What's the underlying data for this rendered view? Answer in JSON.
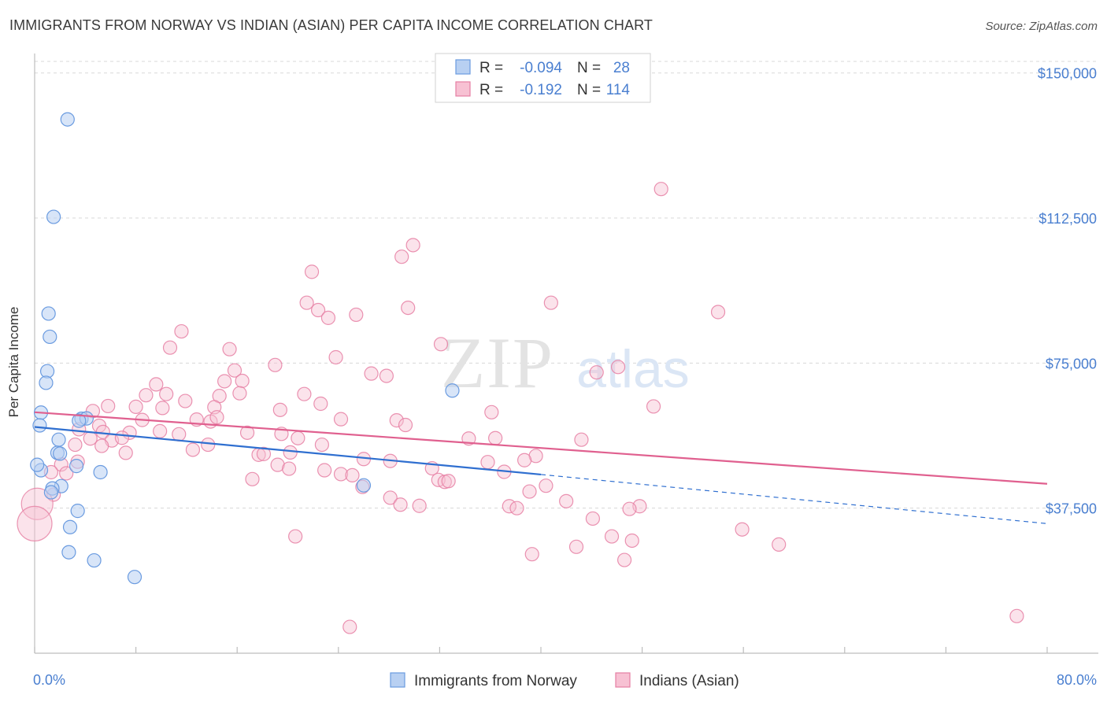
{
  "header": {
    "title": "IMMIGRANTS FROM NORWAY VS INDIAN (ASIAN) PER CAPITA INCOME CORRELATION CHART",
    "source": "Source: ZipAtlas.com"
  },
  "colors": {
    "blue": "#6a9be0",
    "blue_fill": "#b8d0f2",
    "blue_line": "#2f6fd0",
    "pink": "#e67fa3",
    "pink_fill": "#f7c1d3",
    "pink_line": "#e0608f",
    "tick_text": "#4a7fd0",
    "grid": "#d8d8d8"
  },
  "watermark": {
    "zip": "ZIP",
    "atlas": "atlas"
  },
  "chart_data": {
    "type": "scatter",
    "title": "IMMIGRANTS FROM NORWAY VS INDIAN (ASIAN) PER CAPITA INCOME CORRELATION CHART",
    "xlabel": "",
    "ylabel": "Per Capita Income",
    "xlim": [
      0,
      80
    ],
    "ylim": [
      0,
      153000
    ],
    "x_tick_labels": [
      "0.0%",
      "80.0%"
    ],
    "y_ticks": [
      37500,
      75000,
      112500,
      150000
    ],
    "y_tick_labels": [
      "$37,500",
      "$75,000",
      "$112,500",
      "$150,000"
    ],
    "legend": {
      "position": "top-center",
      "rows": [
        {
          "r_label": "R =",
          "r_value": "-0.094",
          "n_label": "N =",
          "n_value": "28"
        },
        {
          "r_label": "R =",
          "r_value": "-0.192",
          "n_label": "N =",
          "n_value": "114"
        }
      ]
    },
    "bottom_legend": [
      "Immigrants from Norway",
      "Indians (Asian)"
    ],
    "series": [
      {
        "name": "Immigrants from Norway",
        "R": -0.094,
        "N": 28,
        "trend": {
          "x0": 0,
          "y0": 58500,
          "x1": 40,
          "y1": 46200,
          "dash_to_x": 80,
          "dash_to_y": 33500
        },
        "points": [
          [
            2.6,
            138000
          ],
          [
            1.5,
            112800
          ],
          [
            1.1,
            87800
          ],
          [
            1.2,
            81800
          ],
          [
            1.0,
            72900
          ],
          [
            0.9,
            69900
          ],
          [
            0.5,
            62200
          ],
          [
            0.4,
            58900
          ],
          [
            3.7,
            60600
          ],
          [
            4.1,
            60700
          ],
          [
            3.5,
            60100
          ],
          [
            1.9,
            55200
          ],
          [
            1.8,
            51800
          ],
          [
            2.0,
            51600
          ],
          [
            3.3,
            48400
          ],
          [
            0.5,
            47300
          ],
          [
            5.2,
            46800
          ],
          [
            2.1,
            43200
          ],
          [
            1.4,
            42600
          ],
          [
            3.4,
            36800
          ],
          [
            2.8,
            32600
          ],
          [
            2.7,
            26100
          ],
          [
            4.7,
            24000
          ],
          [
            7.9,
            19700
          ],
          [
            33.0,
            67900
          ],
          [
            26.0,
            43400
          ],
          [
            0.2,
            48700
          ],
          [
            1.3,
            41600
          ]
        ]
      },
      {
        "name": "Indians (Asian)",
        "R": -0.192,
        "N": 114,
        "trend": {
          "x0": 0,
          "y0": 62300,
          "x1": 80,
          "y1": 43800
        },
        "points": [
          [
            49.5,
            120000
          ],
          [
            29.9,
            105500
          ],
          [
            29.0,
            102500
          ],
          [
            21.9,
            98600
          ],
          [
            21.5,
            90600
          ],
          [
            22.4,
            88700
          ],
          [
            23.2,
            86700
          ],
          [
            25.4,
            87500
          ],
          [
            29.5,
            89300
          ],
          [
            40.8,
            90600
          ],
          [
            54.0,
            88200
          ],
          [
            11.6,
            83200
          ],
          [
            32.1,
            79900
          ],
          [
            10.7,
            79000
          ],
          [
            15.4,
            78600
          ],
          [
            23.8,
            76500
          ],
          [
            19.0,
            74500
          ],
          [
            26.6,
            72300
          ],
          [
            27.8,
            71700
          ],
          [
            15.8,
            73100
          ],
          [
            44.4,
            72600
          ],
          [
            46.1,
            74000
          ],
          [
            15.0,
            70300
          ],
          [
            16.4,
            70400
          ],
          [
            9.6,
            69500
          ],
          [
            8.8,
            66700
          ],
          [
            10.4,
            67000
          ],
          [
            14.6,
            66500
          ],
          [
            16.2,
            67200
          ],
          [
            21.3,
            67000
          ],
          [
            11.9,
            65200
          ],
          [
            22.6,
            64500
          ],
          [
            8.0,
            63700
          ],
          [
            5.8,
            63900
          ],
          [
            10.1,
            63400
          ],
          [
            14.2,
            63600
          ],
          [
            19.4,
            62900
          ],
          [
            36.1,
            62300
          ],
          [
            48.9,
            63800
          ],
          [
            4.6,
            62600
          ],
          [
            12.8,
            60400
          ],
          [
            13.9,
            59900
          ],
          [
            14.4,
            61000
          ],
          [
            24.2,
            60500
          ],
          [
            28.6,
            60200
          ],
          [
            8.5,
            60300
          ],
          [
            5.1,
            58800
          ],
          [
            3.5,
            57900
          ],
          [
            5.4,
            57200
          ],
          [
            7.5,
            57000
          ],
          [
            9.9,
            57400
          ],
          [
            11.4,
            56600
          ],
          [
            16.8,
            57000
          ],
          [
            19.5,
            56700
          ],
          [
            20.8,
            55600
          ],
          [
            29.3,
            59000
          ],
          [
            34.3,
            55500
          ],
          [
            36.4,
            55600
          ],
          [
            43.2,
            55200
          ],
          [
            4.4,
            55500
          ],
          [
            6.1,
            55000
          ],
          [
            6.9,
            55700
          ],
          [
            3.2,
            53900
          ],
          [
            5.3,
            53600
          ],
          [
            13.7,
            53900
          ],
          [
            12.5,
            52600
          ],
          [
            7.2,
            51800
          ],
          [
            17.7,
            51300
          ],
          [
            18.1,
            51500
          ],
          [
            20.2,
            51900
          ],
          [
            22.7,
            53900
          ],
          [
            39.6,
            51000
          ],
          [
            38.7,
            49900
          ],
          [
            28.1,
            49700
          ],
          [
            26.0,
            50200
          ],
          [
            35.8,
            49400
          ],
          [
            3.4,
            49500
          ],
          [
            2.1,
            48800
          ],
          [
            19.2,
            48700
          ],
          [
            20.1,
            47700
          ],
          [
            31.4,
            47800
          ],
          [
            37.1,
            46900
          ],
          [
            22.9,
            47300
          ],
          [
            24.2,
            46300
          ],
          [
            1.3,
            46800
          ],
          [
            2.5,
            46500
          ],
          [
            17.2,
            45000
          ],
          [
            25.1,
            46000
          ],
          [
            31.9,
            44800
          ],
          [
            32.4,
            44300
          ],
          [
            32.7,
            44500
          ],
          [
            25.9,
            43000
          ],
          [
            40.4,
            43300
          ],
          [
            39.1,
            41800
          ],
          [
            28.1,
            40200
          ],
          [
            30.4,
            38100
          ],
          [
            28.9,
            38400
          ],
          [
            42.0,
            39300
          ],
          [
            37.5,
            38000
          ],
          [
            38.1,
            37500
          ],
          [
            47.8,
            38000
          ],
          [
            47.0,
            37300
          ],
          [
            44.1,
            34800
          ],
          [
            55.9,
            32000
          ],
          [
            45.6,
            30200
          ],
          [
            20.6,
            30200
          ],
          [
            47.2,
            29100
          ],
          [
            58.8,
            28100
          ],
          [
            42.8,
            27500
          ],
          [
            39.3,
            25600
          ],
          [
            46.6,
            24100
          ],
          [
            77.6,
            9600
          ],
          [
            24.9,
            6800
          ],
          [
            1.5,
            41000
          ]
        ]
      }
    ]
  },
  "special_points": {
    "big_pink_1": [
      0.2,
      38600
    ],
    "big_pink_2": [
      0.0,
      33500
    ]
  }
}
